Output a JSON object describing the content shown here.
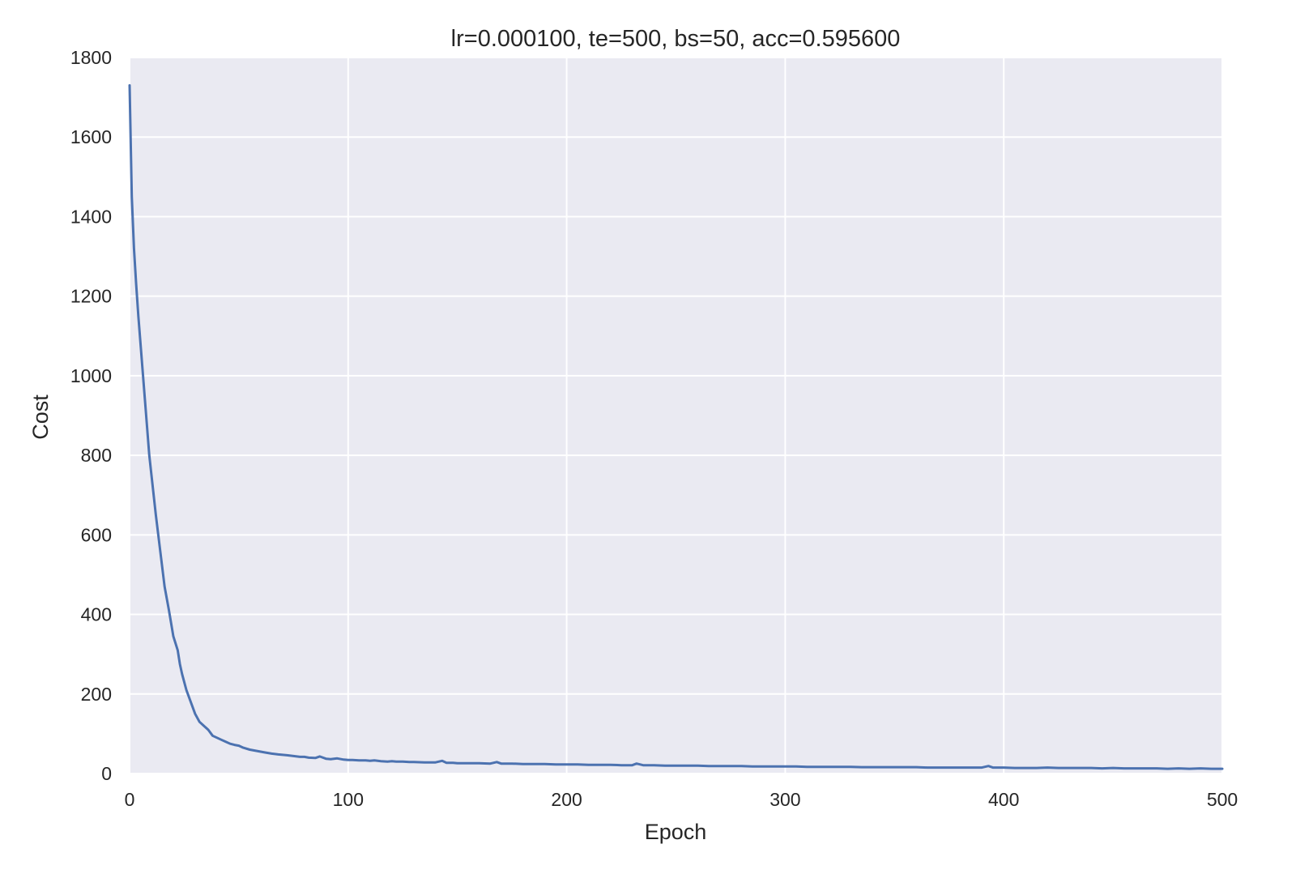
{
  "chart_data": {
    "type": "line",
    "title": "lr=0.000100, te=500, bs=50, acc=0.595600",
    "xlabel": "Epoch",
    "ylabel": "Cost",
    "xlim": [
      0,
      500
    ],
    "ylim": [
      0,
      1800
    ],
    "xticks": [
      0,
      100,
      200,
      300,
      400,
      500
    ],
    "yticks": [
      0,
      200,
      400,
      600,
      800,
      1000,
      1200,
      1400,
      1600,
      1800
    ],
    "grid": true,
    "legend": "none",
    "colors": {
      "plot_background": "#EAEAF2",
      "grid": "#FFFFFF",
      "series": "#4C72B0"
    },
    "series": [
      {
        "x": [
          0,
          1,
          2,
          3,
          4,
          5,
          6,
          7,
          8,
          9,
          10,
          12,
          14,
          16,
          18,
          20,
          22,
          23,
          24,
          26,
          28,
          30,
          32,
          34,
          36,
          38,
          40,
          42,
          44,
          46,
          48,
          50,
          52,
          55,
          58,
          60,
          62,
          65,
          68,
          70,
          72,
          75,
          78,
          80,
          82,
          85,
          87,
          90,
          92,
          95,
          98,
          100,
          102,
          105,
          108,
          110,
          112,
          115,
          118,
          120,
          122,
          125,
          128,
          130,
          135,
          140,
          143,
          145,
          148,
          150,
          155,
          160,
          165,
          168,
          170,
          175,
          180,
          185,
          190,
          195,
          200,
          205,
          210,
          215,
          220,
          225,
          230,
          232,
          235,
          240,
          245,
          250,
          255,
          260,
          265,
          270,
          275,
          280,
          285,
          290,
          295,
          300,
          305,
          310,
          315,
          320,
          325,
          330,
          335,
          340,
          345,
          350,
          355,
          360,
          365,
          370,
          375,
          380,
          385,
          390,
          393,
          395,
          400,
          405,
          410,
          415,
          420,
          425,
          430,
          435,
          440,
          445,
          450,
          455,
          460,
          465,
          470,
          475,
          480,
          485,
          490,
          495,
          500
        ],
        "values": [
          1730,
          1450,
          1320,
          1230,
          1150,
          1080,
          1010,
          940,
          870,
          800,
          750,
          650,
          560,
          470,
          410,
          345,
          310,
          275,
          250,
          210,
          180,
          150,
          130,
          120,
          110,
          95,
          90,
          85,
          80,
          75,
          72,
          70,
          65,
          60,
          57,
          55,
          53,
          50,
          48,
          47,
          46,
          44,
          42,
          42,
          40,
          39,
          43,
          37,
          36,
          38,
          35,
          34,
          34,
          33,
          33,
          32,
          33,
          31,
          30,
          31,
          30,
          30,
          29,
          29,
          28,
          28,
          32,
          27,
          27,
          26,
          26,
          26,
          25,
          29,
          25,
          25,
          24,
          24,
          24,
          23,
          23,
          23,
          22,
          22,
          22,
          21,
          21,
          25,
          21,
          21,
          20,
          20,
          20,
          20,
          19,
          19,
          19,
          19,
          18,
          18,
          18,
          18,
          18,
          17,
          17,
          17,
          17,
          17,
          16,
          16,
          16,
          16,
          16,
          16,
          15,
          15,
          15,
          15,
          15,
          15,
          19,
          15,
          15,
          14,
          14,
          14,
          15,
          14,
          14,
          14,
          14,
          13,
          14,
          13,
          13,
          13,
          13,
          12,
          13,
          12,
          13,
          12,
          12
        ]
      }
    ]
  }
}
